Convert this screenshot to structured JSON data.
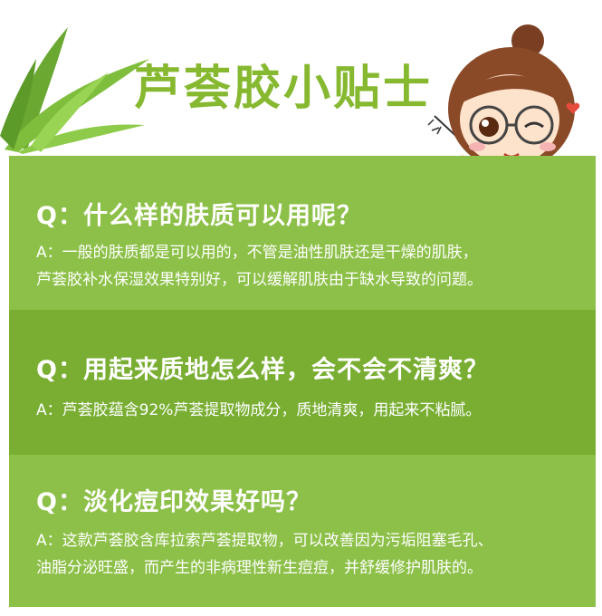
{
  "header": {
    "title": "芦荟胶小贴士",
    "decor_left": "aloe-leaves",
    "decor_right": "cartoon-girl-with-glasses-pointing"
  },
  "colors": {
    "title": "#86b830",
    "panel_light": "#8dc048",
    "panel_dark": "#79ae33",
    "text": "#ffffff"
  },
  "faq": [
    {
      "q": "Q：什么样的肤质可以用呢？",
      "a_lines": [
        "A：一般的肤质都是可以用的，不管是油性肌肤还是干燥的肌肤，",
        "芦荟胶补水保湿效果特别好，可以缓解肌肤由于缺水导致的问题。"
      ]
    },
    {
      "q": "Q：用起来质地怎么样，会不会不清爽？",
      "a_lines": [
        "A：芦荟胶蕴含92%芦荟提取物成分，质地清爽，用起来不粘腻。"
      ]
    },
    {
      "q": "Q：淡化痘印效果好吗？",
      "a_lines": [
        "A：这款芦荟胶含库拉索芦荟提取物，可以改善因为污垢阻塞毛孔、",
        "油脂分泌旺盛，而产生的非病理性新生痘痘，并舒缓修护肌肤的。"
      ]
    }
  ]
}
